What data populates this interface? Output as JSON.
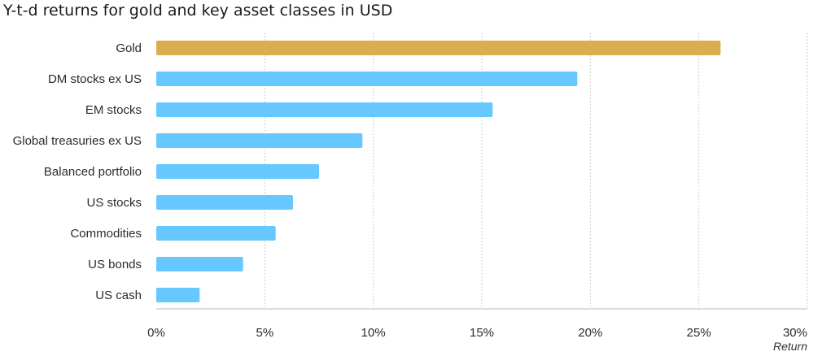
{
  "title": "Y-t-d returns for gold and key asset classes in USD",
  "colors": {
    "highlight": "#DBAD4F",
    "bar": "#66C8FF",
    "grid": "#cfcfcf",
    "axis": "#b5b5b5"
  },
  "chart_data": {
    "type": "bar",
    "orientation": "horizontal",
    "title": "Y-t-d returns for gold and key asset classes in USD",
    "xlabel": "Return",
    "ylabel": "",
    "categories": [
      "Gold",
      "DM stocks ex US",
      "EM stocks",
      "Global treasuries ex US",
      "Balanced portfolio",
      "US stocks",
      "Commodities",
      "US bonds",
      "US cash"
    ],
    "values": [
      26.0,
      19.4,
      15.5,
      9.5,
      7.5,
      6.3,
      5.5,
      4.0,
      2.0
    ],
    "highlight_category": "Gold",
    "xlim": [
      0,
      30
    ],
    "xticks": [
      0,
      5,
      10,
      15,
      20,
      25,
      30
    ],
    "xtick_labels": [
      "0%",
      "5%",
      "10%",
      "15%",
      "20%",
      "25%",
      "30%"
    ],
    "grid": "vertical dotted",
    "legend": "none"
  }
}
